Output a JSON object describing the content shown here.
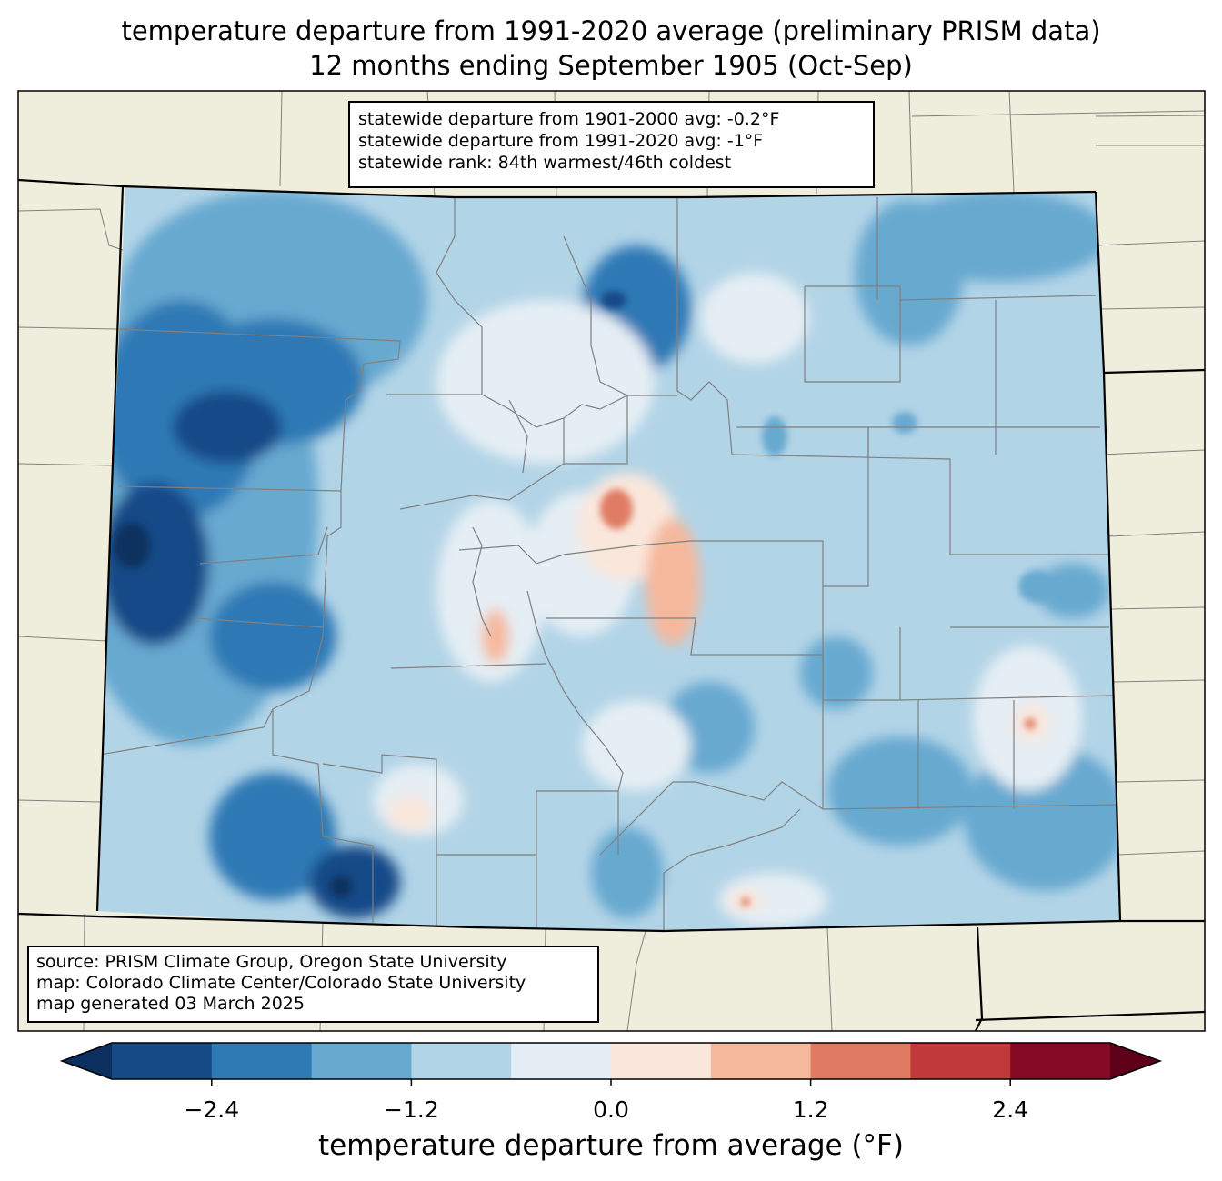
{
  "title": {
    "line1": "temperature departure from 1991-2020 average (preliminary PRISM data)",
    "line2": "12 months ending September 1905 (Oct-Sep)"
  },
  "stats_box": {
    "line1": "statewide departure from 1901-2000 avg: -0.2°F",
    "line2": "statewide departure from 1991-2020 avg: -1°F",
    "line3": "statewide rank: 84th warmest/46th coldest"
  },
  "source_box": {
    "line1": "source: PRISM Climate Group, Oregon State University",
    "line2": "map: Colorado Climate Center/Colorado State University",
    "line3": "map generated 03 March 2025"
  },
  "colorbar": {
    "label": "temperature departure from average (°F)",
    "ticks": [
      "−2.4",
      "−1.2",
      "0.0",
      "1.2",
      "2.4"
    ],
    "tick_values": [
      -2.4,
      -1.2,
      0.0,
      1.2,
      2.4
    ],
    "levels": [
      -3.0,
      -2.4,
      -1.8,
      -1.2,
      -0.6,
      0.0,
      0.6,
      1.2,
      1.8,
      2.4,
      3.0
    ],
    "colors": [
      "#0b305f",
      "#164a87",
      "#2f79b5",
      "#68a9d0",
      "#b2d4e7",
      "#e5eef4",
      "#fae7dc",
      "#f6b89c",
      "#e07b63",
      "#c0393b",
      "#870a24",
      "#5e0018"
    ]
  },
  "map_colors": {
    "land": "#efeedd",
    "state_border": "#000000",
    "county_border": "#808080"
  }
}
